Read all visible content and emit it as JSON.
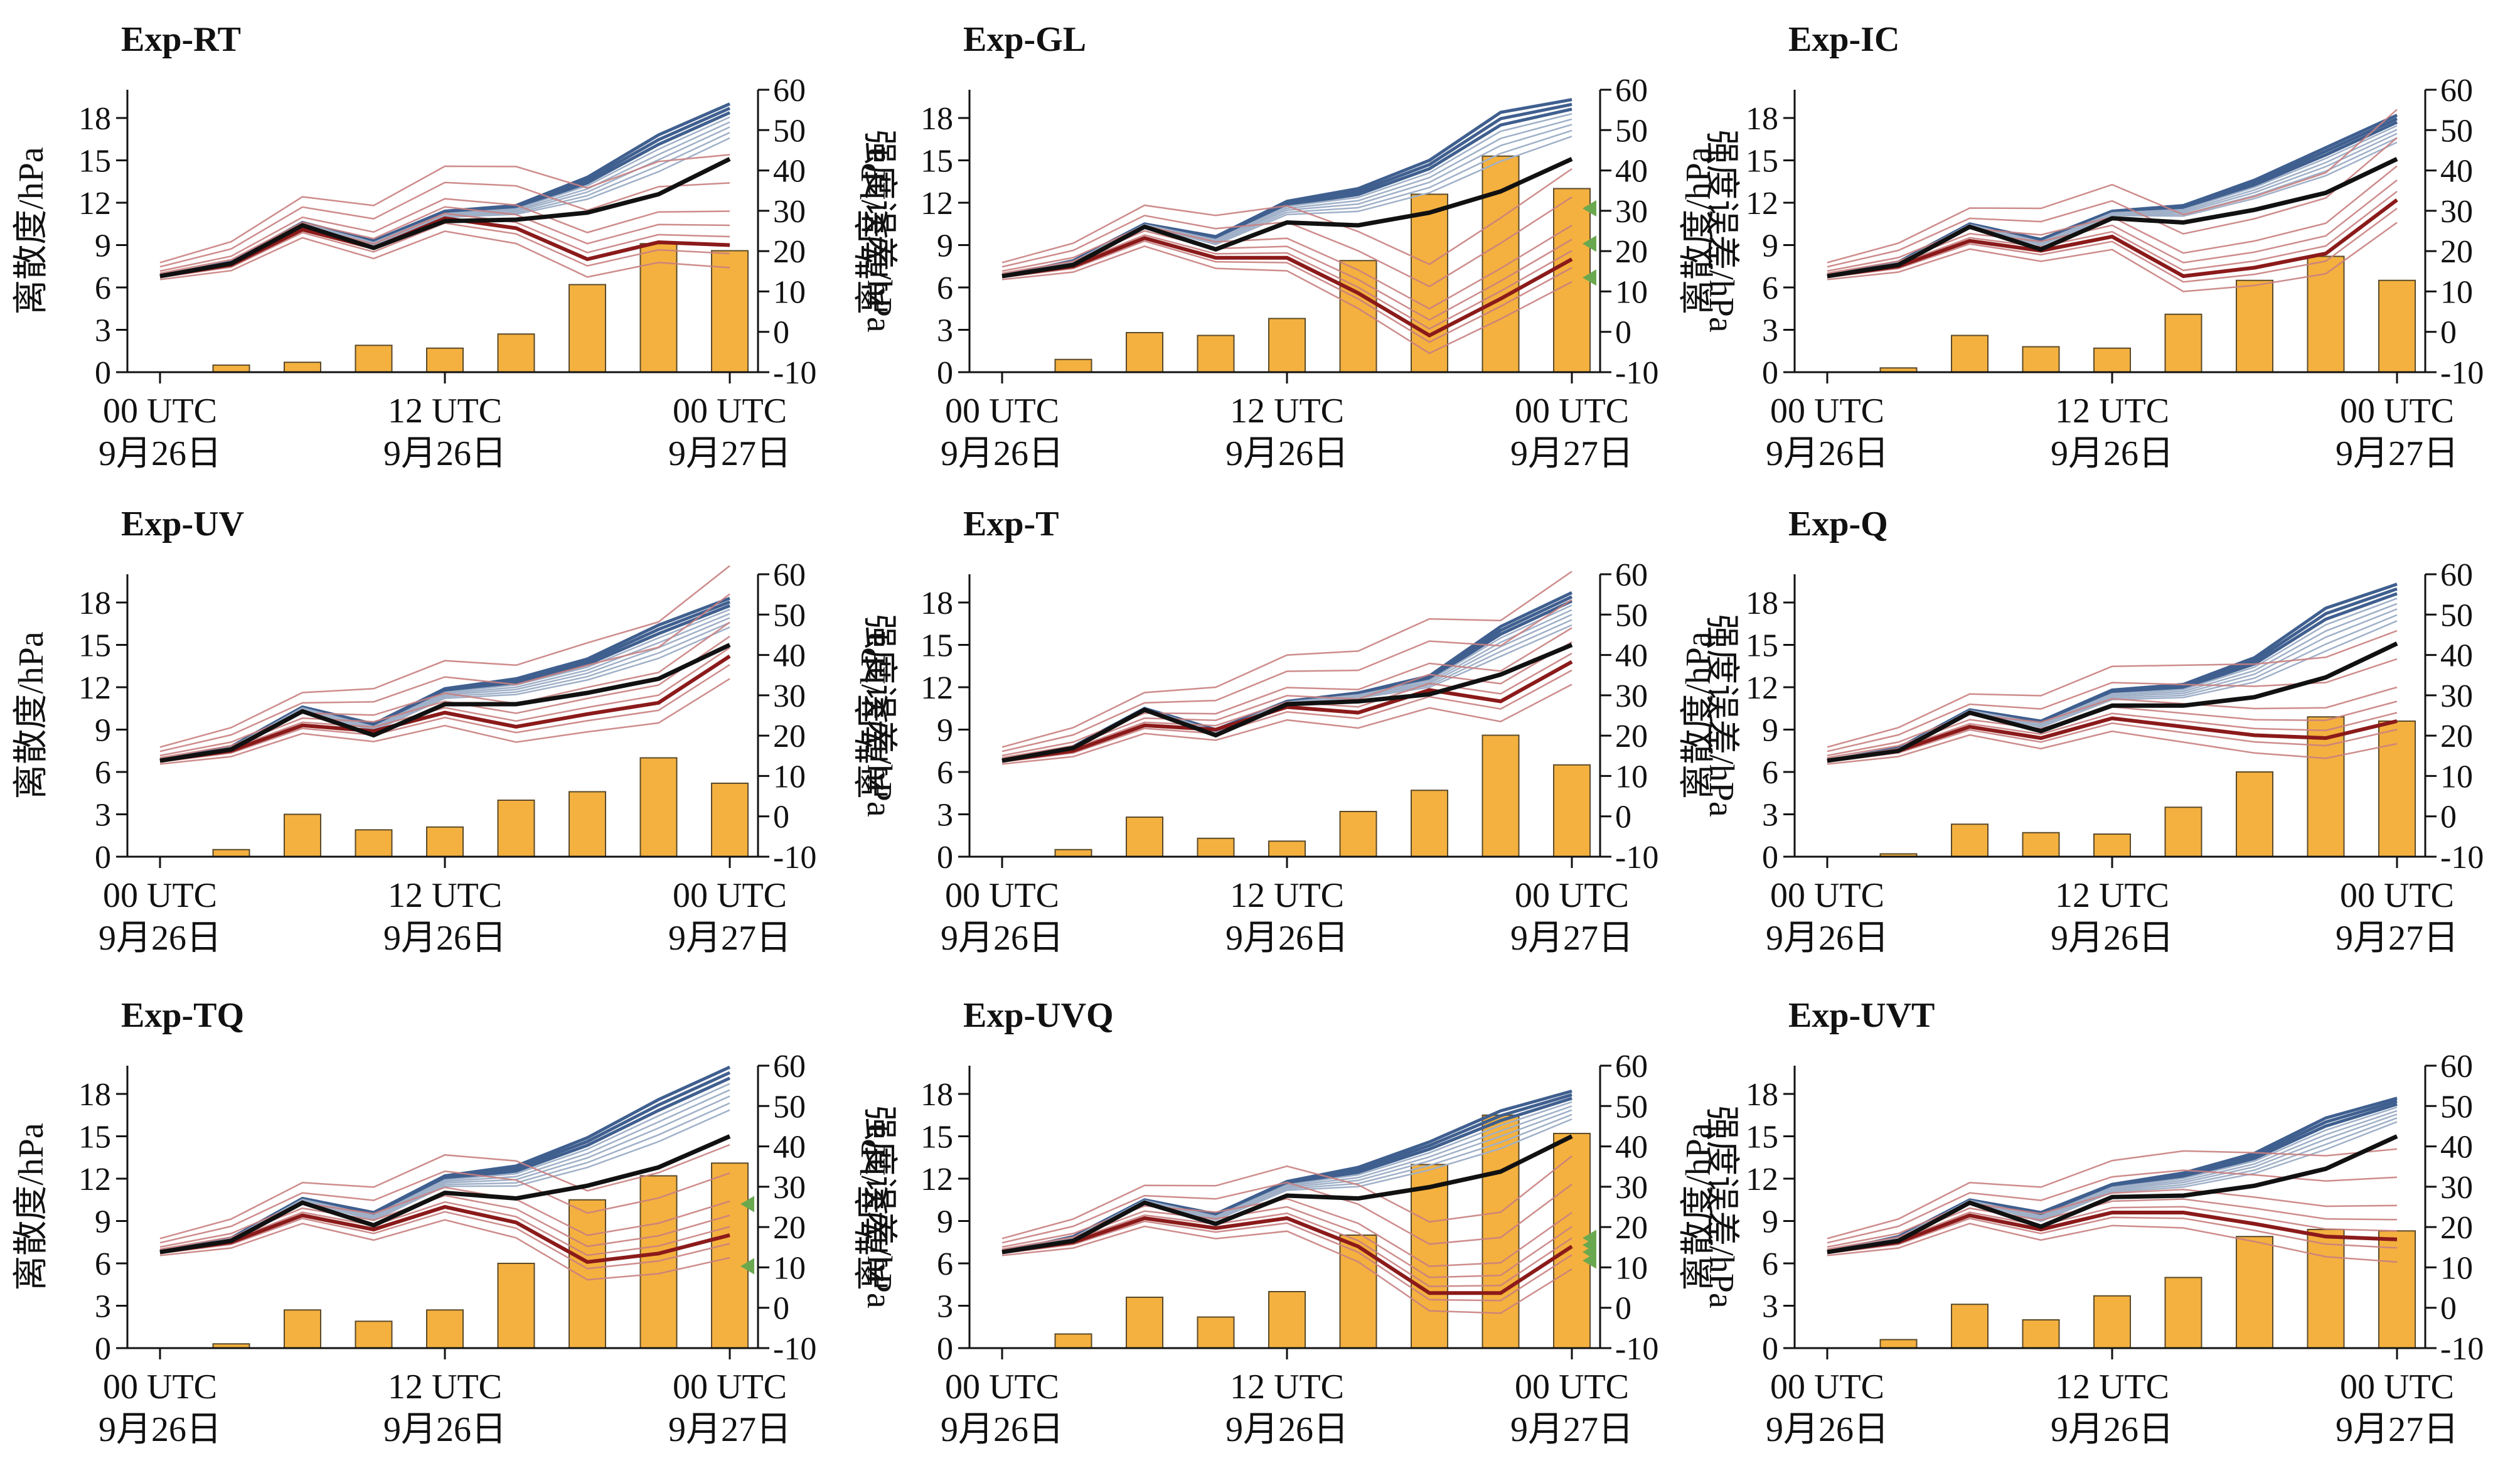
{
  "figure": {
    "left_axis_label": "离散度/hPa",
    "right_axis_label": "强度误差/hPa",
    "x_tick_labels": [
      {
        "line1": "00 UTC",
        "line2": "9月26日"
      },
      {
        "line1": "12 UTC",
        "line2": "9月26日"
      },
      {
        "line1": "00 UTC",
        "line2": "9月27日"
      }
    ],
    "colors": {
      "bar": "#F4B13F",
      "bar_edge": "#5b4a2a",
      "spread_line": "#111111",
      "ensemble_blue": "#3f5f8f",
      "ensemble_blue_light": "#9fb0c8",
      "ensemble_red": "#8b1a1a",
      "ensemble_red_light": "#c98080",
      "marker": "#6aa84f"
    }
  },
  "chart_data": [
    {
      "panel": "Exp-RT",
      "type": "bar+line",
      "x": [
        0,
        3,
        6,
        9,
        12,
        15,
        18,
        21,
        24
      ],
      "x_ticks_at": [
        0,
        12,
        24
      ],
      "ylim_left": [
        0,
        20
      ],
      "yticks_left": [
        0,
        3,
        6,
        9,
        12,
        15,
        18
      ],
      "ylim_right": [
        -10,
        60
      ],
      "yticks_right": [
        -10,
        0,
        10,
        20,
        30,
        40,
        50,
        60
      ],
      "bars": [
        0,
        0.5,
        0.7,
        1.9,
        1.7,
        2.7,
        6.2,
        9.1,
        8.6
      ],
      "spread": [
        6.8,
        7.7,
        10.4,
        8.8,
        10.7,
        10.8,
        11.3,
        12.6,
        15.1
      ],
      "blue_max": [
        6.8,
        7.8,
        10.6,
        9.3,
        11.4,
        11.8,
        13.8,
        16.8,
        19.0
      ],
      "red_center": [
        6.8,
        7.6,
        10.1,
        8.8,
        10.9,
        10.2,
        8.0,
        9.2,
        9.0
      ],
      "markers": []
    },
    {
      "panel": "Exp-GL",
      "type": "bar+line",
      "x": [
        0,
        3,
        6,
        9,
        12,
        15,
        18,
        21,
        24
      ],
      "x_ticks_at": [
        0,
        12,
        24
      ],
      "ylim_left": [
        0,
        20
      ],
      "yticks_left": [
        0,
        3,
        6,
        9,
        12,
        15,
        18
      ],
      "ylim_right": [
        -10,
        60
      ],
      "yticks_right": [
        -10,
        0,
        10,
        20,
        30,
        40,
        50,
        60
      ],
      "bars": [
        0,
        0.9,
        2.8,
        2.6,
        3.8,
        7.9,
        12.6,
        15.3,
        13.0
      ],
      "spread": [
        6.8,
        7.6,
        10.3,
        8.7,
        10.6,
        10.4,
        11.3,
        12.8,
        15.1
      ],
      "blue_max": [
        6.8,
        7.9,
        10.5,
        9.6,
        12.1,
        13.0,
        15.0,
        18.4,
        19.3
      ],
      "red_center": [
        6.8,
        7.5,
        9.5,
        8.1,
        8.1,
        5.6,
        2.6,
        5.2,
        8.0
      ],
      "markers": [
        11.6,
        9.1,
        6.7
      ]
    },
    {
      "panel": "Exp-IC",
      "type": "bar+line",
      "x": [
        0,
        3,
        6,
        9,
        12,
        15,
        18,
        21,
        24
      ],
      "x_ticks_at": [
        0,
        12,
        24
      ],
      "ylim_left": [
        0,
        20
      ],
      "yticks_left": [
        0,
        3,
        6,
        9,
        12,
        15,
        18
      ],
      "ylim_right": [
        -10,
        60
      ],
      "yticks_right": [
        -10,
        0,
        10,
        20,
        30,
        40,
        50,
        60
      ],
      "bars": [
        0,
        0.3,
        2.6,
        1.8,
        1.7,
        4.1,
        6.5,
        8.2,
        6.5
      ],
      "spread": [
        6.8,
        7.6,
        10.3,
        8.7,
        10.9,
        10.6,
        11.5,
        12.7,
        15.1
      ],
      "blue_max": [
        6.8,
        7.8,
        10.5,
        9.4,
        11.4,
        11.8,
        13.6,
        15.9,
        18.2
      ],
      "red_center": [
        6.8,
        7.5,
        9.3,
        8.6,
        9.6,
        6.8,
        7.4,
        8.4,
        12.2
      ],
      "markers": []
    },
    {
      "panel": "Exp-UV",
      "type": "bar+line",
      "x": [
        0,
        3,
        6,
        9,
        12,
        15,
        18,
        21,
        24
      ],
      "x_ticks_at": [
        0,
        12,
        24
      ],
      "ylim_left": [
        0,
        20
      ],
      "yticks_left": [
        0,
        3,
        6,
        9,
        12,
        15,
        18
      ],
      "ylim_right": [
        -10,
        60
      ],
      "yticks_right": [
        -10,
        0,
        10,
        20,
        30,
        40,
        50,
        60
      ],
      "bars": [
        0,
        0.5,
        3.0,
        1.9,
        2.1,
        4.0,
        4.6,
        7.0,
        5.2
      ],
      "spread": [
        6.8,
        7.6,
        10.3,
        8.6,
        10.8,
        10.8,
        11.6,
        12.6,
        15.0
      ],
      "blue_max": [
        6.8,
        7.8,
        10.6,
        9.4,
        11.9,
        12.6,
        14.0,
        16.4,
        18.3
      ],
      "red_center": [
        6.8,
        7.5,
        9.3,
        8.9,
        10.2,
        9.2,
        10.1,
        10.9,
        14.2
      ],
      "markers": []
    },
    {
      "panel": "Exp-T",
      "type": "bar+line",
      "x": [
        0,
        3,
        6,
        9,
        12,
        15,
        18,
        21,
        24
      ],
      "x_ticks_at": [
        0,
        12,
        24
      ],
      "ylim_left": [
        0,
        20
      ],
      "yticks_left": [
        0,
        3,
        6,
        9,
        12,
        15,
        18
      ],
      "ylim_right": [
        -10,
        60
      ],
      "yticks_right": [
        -10,
        0,
        10,
        20,
        30,
        40,
        50,
        60
      ],
      "bars": [
        0,
        0.5,
        2.8,
        1.3,
        1.1,
        3.2,
        4.7,
        8.6,
        6.5
      ],
      "spread": [
        6.8,
        7.7,
        10.4,
        8.6,
        10.8,
        11.0,
        11.5,
        12.9,
        15.0
      ],
      "blue_max": [
        6.8,
        7.8,
        10.5,
        9.0,
        11.0,
        11.6,
        12.8,
        16.3,
        18.7
      ],
      "red_center": [
        6.8,
        7.5,
        9.3,
        9.0,
        10.6,
        10.2,
        11.8,
        11.0,
        13.8
      ],
      "markers": []
    },
    {
      "panel": "Exp-Q",
      "type": "bar+line",
      "x": [
        0,
        3,
        6,
        9,
        12,
        15,
        18,
        21,
        24
      ],
      "x_ticks_at": [
        0,
        12,
        24
      ],
      "ylim_left": [
        0,
        20
      ],
      "yticks_left": [
        0,
        3,
        6,
        9,
        12,
        15,
        18
      ],
      "ylim_right": [
        -10,
        60
      ],
      "yticks_right": [
        -10,
        0,
        10,
        20,
        30,
        40,
        50,
        60
      ],
      "bars": [
        0,
        0.2,
        2.3,
        1.7,
        1.6,
        3.5,
        6.0,
        9.9,
        9.6
      ],
      "spread": [
        6.8,
        7.5,
        10.2,
        8.9,
        10.7,
        10.7,
        11.3,
        12.7,
        15.1
      ],
      "blue_max": [
        6.8,
        7.7,
        10.4,
        9.6,
        11.8,
        12.2,
        14.1,
        17.6,
        19.3
      ],
      "red_center": [
        6.8,
        7.5,
        9.2,
        8.4,
        9.8,
        9.2,
        8.6,
        8.4,
        9.6
      ],
      "markers": []
    },
    {
      "panel": "Exp-TQ",
      "type": "bar+line",
      "x": [
        0,
        3,
        6,
        9,
        12,
        15,
        18,
        21,
        24
      ],
      "x_ticks_at": [
        0,
        12,
        24
      ],
      "ylim_left": [
        0,
        20
      ],
      "yticks_left": [
        0,
        3,
        6,
        9,
        12,
        15,
        18
      ],
      "ylim_right": [
        -10,
        60
      ],
      "yticks_right": [
        -10,
        0,
        10,
        20,
        30,
        40,
        50,
        60
      ],
      "bars": [
        0,
        0.3,
        2.7,
        1.9,
        2.7,
        6.0,
        10.5,
        12.2,
        13.1
      ],
      "spread": [
        6.8,
        7.6,
        10.3,
        8.7,
        11.0,
        10.6,
        11.5,
        12.8,
        15.0
      ],
      "blue_max": [
        6.8,
        7.8,
        10.6,
        9.6,
        12.2,
        12.9,
        14.9,
        17.6,
        19.9
      ],
      "red_center": [
        6.8,
        7.5,
        9.4,
        8.4,
        10.0,
        8.9,
        6.1,
        6.7,
        8.0
      ],
      "markers": [
        10.2,
        5.8
      ]
    },
    {
      "panel": "Exp-UVQ",
      "type": "bar+line",
      "x": [
        0,
        3,
        6,
        9,
        12,
        15,
        18,
        21,
        24
      ],
      "x_ticks_at": [
        0,
        12,
        24
      ],
      "ylim_left": [
        0,
        20
      ],
      "yticks_left": [
        0,
        3,
        6,
        9,
        12,
        15,
        18
      ],
      "ylim_right": [
        -10,
        60
      ],
      "yticks_right": [
        -10,
        0,
        10,
        20,
        30,
        40,
        50,
        60
      ],
      "bars": [
        0,
        1.0,
        3.6,
        2.2,
        4.0,
        8.0,
        13.0,
        16.5,
        15.2
      ],
      "spread": [
        6.8,
        7.6,
        10.3,
        8.8,
        10.8,
        10.6,
        11.4,
        12.5,
        15.0
      ],
      "blue_max": [
        6.8,
        7.9,
        10.5,
        9.5,
        11.8,
        12.8,
        14.6,
        16.8,
        18.2
      ],
      "red_center": [
        6.8,
        7.5,
        9.2,
        8.5,
        9.2,
        7.2,
        3.9,
        3.9,
        7.2
      ],
      "markers": [
        7.8,
        7.3,
        6.8,
        6.2
      ]
    },
    {
      "panel": "Exp-UVT",
      "type": "bar+line",
      "x": [
        0,
        3,
        6,
        9,
        12,
        15,
        18,
        21,
        24
      ],
      "x_ticks_at": [
        0,
        12,
        24
      ],
      "ylim_left": [
        0,
        20
      ],
      "yticks_left": [
        0,
        3,
        6,
        9,
        12,
        15,
        18
      ],
      "ylim_right": [
        -10,
        60
      ],
      "yticks_right": [
        -10,
        0,
        10,
        20,
        30,
        40,
        50,
        60
      ],
      "bars": [
        0,
        0.6,
        3.1,
        2.0,
        3.7,
        5.0,
        7.9,
        8.4,
        8.3
      ],
      "spread": [
        6.8,
        7.6,
        10.3,
        8.6,
        10.7,
        10.8,
        11.5,
        12.7,
        15.0
      ],
      "blue_max": [
        6.8,
        7.9,
        10.5,
        9.6,
        11.6,
        12.4,
        13.8,
        16.3,
        17.7
      ],
      "red_center": [
        6.8,
        7.5,
        9.4,
        8.4,
        9.6,
        9.6,
        8.8,
        7.9,
        7.7
      ],
      "markers": []
    }
  ]
}
